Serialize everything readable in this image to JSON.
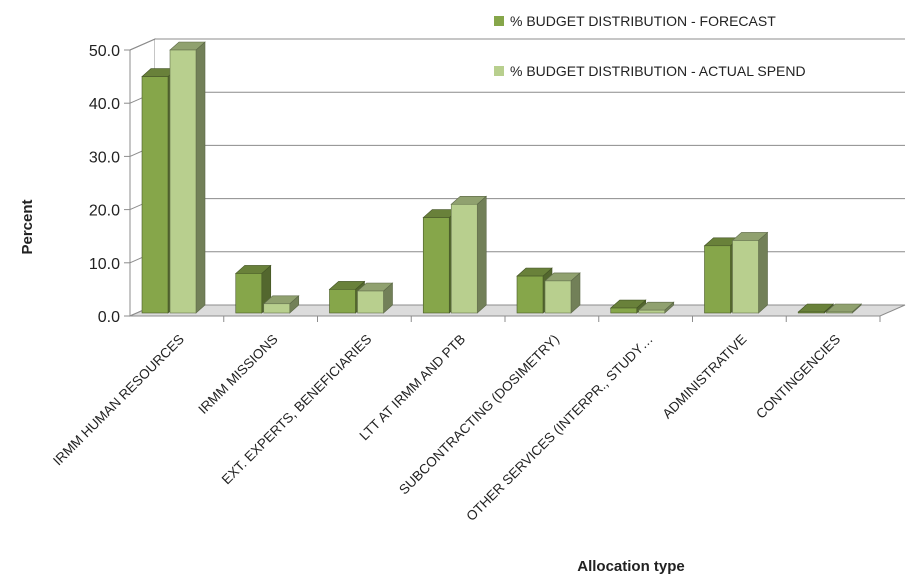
{
  "chart_data": {
    "type": "bar",
    "style": "3d-clustered-column",
    "categories": [
      "IRMM HUMAN RESOURCES",
      "IRMM MISSIONS",
      "EXT. EXPERTS, BENEFICIARIES",
      "LTT AT IRMM AND PTB",
      "SUBCONTRACTING (DOSIMETRY)",
      "OTHER SERVICES (INTERPR., STUDY…",
      "ADMINISTRATIVE",
      "CONTINGENCIES"
    ],
    "series": [
      {
        "name": "% BUDGET DISTRIBUTION - FORECAST",
        "color": "#86A64A",
        "values": [
          45.0,
          8.0,
          5.0,
          18.5,
          7.5,
          1.5,
          13.2,
          0.6
        ]
      },
      {
        "name": "% BUDGET DISTRIBUTION - ACTUAL SPEND",
        "color": "#B8CF8E",
        "values": [
          50.0,
          2.3,
          4.7,
          21.0,
          6.6,
          1.1,
          14.2,
          0.1
        ]
      }
    ],
    "ylabel": "Percent",
    "xlabel": "Allocation type",
    "ylim": [
      0,
      50
    ],
    "yticks": [
      "0.0",
      "10.0",
      "20.0",
      "30.0",
      "40.0",
      "50.0"
    ],
    "grid": true,
    "legend_position": "top-right"
  }
}
